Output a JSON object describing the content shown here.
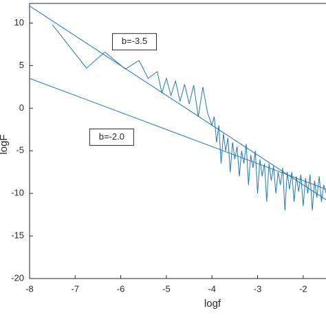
{
  "chart_data": {
    "type": "line",
    "xlabel": "logf",
    "ylabel": "logF",
    "xlim": [
      -8,
      -1.5
    ],
    "ylim": [
      -20,
      12.3
    ],
    "xticks": [
      -8,
      -7,
      -6,
      -5,
      -4,
      -3,
      -2
    ],
    "yticks": [
      -20,
      -15,
      -10,
      -5,
      0,
      5,
      10
    ],
    "grid": false,
    "series": [
      {
        "color": "#1f77b4",
        "x": [
          -7.5,
          -6.75,
          -6.35,
          -5.9,
          -5.6,
          -5.4,
          -5.2,
          -5.1,
          -5.0,
          -4.9,
          -4.8,
          -4.7,
          -4.6,
          -4.5,
          -4.4,
          -4.3,
          -4.2,
          -4.1,
          -4.0,
          -3.95,
          -3.9,
          -3.85,
          -3.8,
          -3.75,
          -3.7,
          -3.65,
          -3.6,
          -3.55,
          -3.5,
          -3.45,
          -3.4,
          -3.35,
          -3.3,
          -3.25,
          -3.2,
          -3.15,
          -3.1,
          -3.05,
          -3.0,
          -2.95,
          -2.9,
          -2.85,
          -2.8,
          -2.75,
          -2.7,
          -2.65,
          -2.6,
          -2.55,
          -2.5,
          -2.45,
          -2.4,
          -2.35,
          -2.3,
          -2.25,
          -2.2,
          -2.15,
          -2.1,
          -2.05,
          -2.0,
          -1.95,
          -1.9,
          -1.85,
          -1.8,
          -1.75,
          -1.7,
          -1.65,
          -1.6,
          -1.55,
          -1.5
        ],
        "values": [
          9.8,
          4.7,
          6.6,
          4.6,
          5.6,
          3.5,
          4.3,
          1.8,
          3.5,
          1.5,
          3.2,
          0.8,
          2.8,
          0.5,
          2.7,
          -1,
          2.5,
          -0.5,
          -2,
          -1,
          -4,
          -2,
          -6.5,
          -3,
          -5,
          -3.5,
          -7.5,
          -4,
          -6,
          -4.5,
          -8,
          -5,
          -6.5,
          -4.2,
          -9,
          -5.5,
          -7,
          -5,
          -10,
          -6,
          -8,
          -6.5,
          -11,
          -6.5,
          -8.5,
          -6.8,
          -10,
          -7.5,
          -9,
          -7,
          -12,
          -7.5,
          -9.5,
          -7.5,
          -11,
          -8,
          -9.8,
          -7.8,
          -11.5,
          -8.2,
          -10,
          -7.8,
          -12,
          -8.5,
          -10.5,
          -8,
          -11,
          -9,
          -10
        ]
      },
      {
        "color": "#1f77b4",
        "x": [
          -8,
          -1.5
        ],
        "values": [
          12,
          -10.75
        ]
      },
      {
        "color": "#1f77b4",
        "x": [
          -8,
          -1.5
        ],
        "values": [
          3.5,
          -9.5
        ]
      }
    ],
    "annotations": [
      {
        "text": "b=-3.5",
        "x": -5.7,
        "y": 7.8
      },
      {
        "text": "b=-2.0",
        "x": -6.2,
        "y": -3.4
      }
    ]
  }
}
